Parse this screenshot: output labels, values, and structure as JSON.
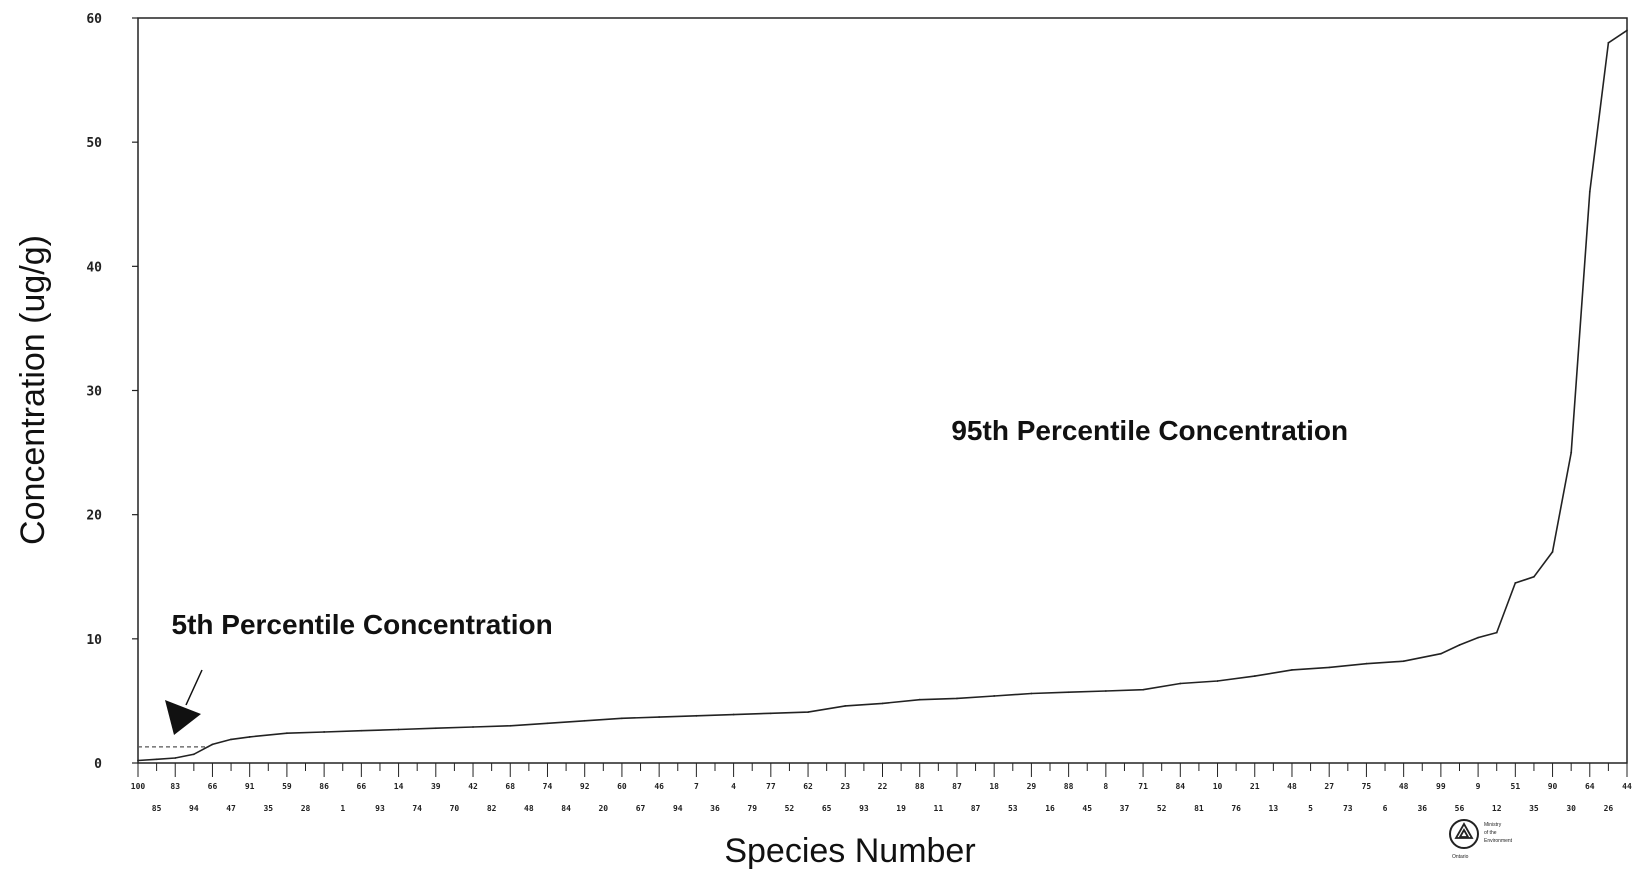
{
  "chart_data": {
    "type": "line",
    "title": "",
    "xlabel": "Species Number",
    "ylabel": "Concentration (ug/g)",
    "ylim": [
      0,
      60
    ],
    "yticks": [
      "0",
      "10",
      "20",
      "30",
      "40",
      "50",
      "60"
    ],
    "grid": false,
    "x_top_row": [
      "100",
      "83",
      "66",
      "91",
      "59",
      "86",
      "66",
      "14",
      "39",
      "42",
      "68",
      "74",
      "92",
      "60",
      "46",
      "7",
      "4",
      "77",
      "62",
      "23",
      "22",
      "88",
      "87",
      "18",
      "29",
      "88",
      "8",
      "71",
      "84",
      "10",
      "21",
      "48",
      "27",
      "75",
      "48",
      "99",
      "9",
      "51",
      "90",
      "64",
      "44"
    ],
    "x_bottom_row": [
      "85",
      "94",
      "47",
      "35",
      "28",
      "1",
      "93",
      "74",
      "70",
      "82",
      "48",
      "84",
      "20",
      "67",
      "94",
      "36",
      "79",
      "52",
      "65",
      "93",
      "19",
      "11",
      "87",
      "53",
      "16",
      "45",
      "37",
      "52",
      "81",
      "76",
      "13",
      "5",
      "73",
      "6",
      "36",
      "56",
      "12",
      "35",
      "30",
      "26"
    ],
    "series": [
      {
        "x": [
          0,
          1,
          2,
          3,
          4,
          5,
          6,
          8,
          10,
          12,
          14,
          16,
          18,
          20,
          22,
          24,
          26,
          28,
          30,
          32,
          34,
          36,
          38,
          40,
          42,
          44,
          46,
          48,
          50,
          52,
          54,
          56,
          58,
          60,
          62,
          64,
          66,
          68,
          70,
          71,
          72,
          73,
          74,
          75,
          76,
          77,
          78,
          79,
          80
        ],
        "values": [
          0.2,
          0.3,
          0.4,
          0.7,
          1.5,
          1.9,
          2.1,
          2.4,
          2.5,
          2.6,
          2.7,
          2.8,
          2.9,
          3.0,
          3.2,
          3.4,
          3.6,
          3.7,
          3.8,
          3.9,
          4.0,
          4.1,
          4.6,
          4.8,
          5.1,
          5.2,
          5.4,
          5.6,
          5.7,
          5.8,
          5.9,
          6.4,
          6.6,
          7.0,
          7.5,
          7.7,
          8.0,
          8.2,
          8.8,
          9.5,
          10.1,
          10.5,
          14.5,
          15.0,
          17.0,
          25.0,
          46.0,
          58.0,
          59.0
        ]
      }
    ],
    "reference_level": 1.3,
    "annotations": [
      {
        "text": "5th Percentile Concentration",
        "x": 1.8,
        "y": 10.4
      },
      {
        "text": "95th Percentile Concentration",
        "x": 43.7,
        "y": 26.0
      }
    ],
    "logo_text": [
      "Ministry",
      "of the",
      "Environment",
      "Ontario"
    ]
  }
}
